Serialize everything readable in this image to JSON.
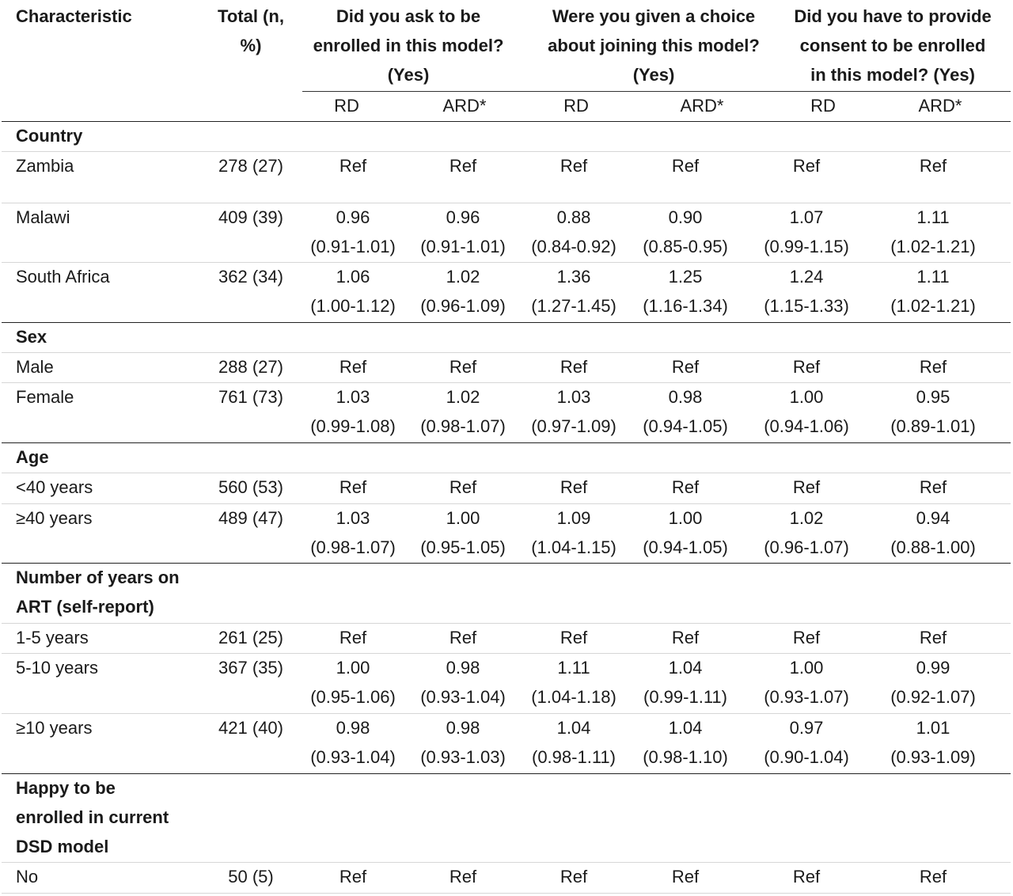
{
  "header": {
    "characteristic": "Characteristic",
    "total_line1": "Total (n,",
    "total_line2": "%)",
    "q1": [
      "Did you ask to be",
      "enrolled in this model?",
      "(Yes)"
    ],
    "q2": [
      "Were you given a choice",
      "about joining this model?",
      "(Yes)"
    ],
    "q3": [
      "Did you have to provide",
      "consent to be enrolled",
      "in this model? (Yes)"
    ],
    "sub": [
      "RD",
      "ARD*",
      "RD",
      "ARD*",
      "RD",
      "ARD*"
    ]
  },
  "sections": [
    {
      "title": [
        "Country"
      ]
    },
    {
      "title": [
        "Sex"
      ]
    },
    {
      "title": [
        "Age"
      ]
    },
    {
      "title": [
        "Number of years on",
        "ART (self-report)"
      ]
    },
    {
      "title": [
        "Happy to be",
        "enrolled in current",
        "DSD model"
      ]
    }
  ],
  "rows": [
    {
      "label": "Zambia",
      "total": "278 (27)",
      "vals": [
        "Ref",
        "Ref",
        "Ref",
        "Ref",
        "Ref",
        "Ref"
      ],
      "ci": [
        "",
        "",
        "",
        "",
        "",
        ""
      ]
    },
    {
      "label": "Malawi",
      "total": "409 (39)",
      "vals": [
        "0.96",
        "0.96",
        "0.88",
        "0.90",
        "1.07",
        "1.11"
      ],
      "ci": [
        "(0.91-1.01)",
        "(0.91-1.01)",
        "(0.84-0.92)",
        "(0.85-0.95)",
        "(0.99-1.15)",
        "(1.02-1.21)"
      ]
    },
    {
      "label": "South Africa",
      "total": "362 (34)",
      "vals": [
        "1.06",
        "1.02",
        "1.36",
        "1.25",
        "1.24",
        "1.11"
      ],
      "ci": [
        "(1.00-1.12)",
        "(0.96-1.09)",
        "(1.27-1.45)",
        "(1.16-1.34)",
        "(1.15-1.33)",
        "(1.02-1.21)"
      ]
    },
    {
      "label": "Male",
      "total": "288 (27)",
      "vals": [
        "Ref",
        "Ref",
        "Ref",
        "Ref",
        "Ref",
        "Ref"
      ],
      "ci": [
        "",
        "",
        "",
        "",
        "",
        ""
      ]
    },
    {
      "label": "Female",
      "total": "761 (73)",
      "vals": [
        "1.03",
        "1.02",
        "1.03",
        "0.98",
        "1.00",
        "0.95"
      ],
      "ci": [
        "(0.99-1.08)",
        "(0.98-1.07)",
        "(0.97-1.09)",
        "(0.94-1.05)",
        "(0.94-1.06)",
        "(0.89-1.01)"
      ]
    },
    {
      "label": "<40 years",
      "total": "560 (53)",
      "vals": [
        "Ref",
        "Ref",
        "Ref",
        "Ref",
        "Ref",
        "Ref"
      ],
      "ci": [
        "",
        "",
        "",
        "",
        "",
        ""
      ]
    },
    {
      "label": "≥40 years",
      "total": "489 (47)",
      "vals": [
        "1.03",
        "1.00",
        "1.09",
        "1.00",
        "1.02",
        "0.94"
      ],
      "ci": [
        "(0.98-1.07)",
        "(0.95-1.05)",
        "(1.04-1.15)",
        "(0.94-1.05)",
        "(0.96-1.07)",
        "(0.88-1.00)"
      ]
    },
    {
      "label": "1-5 years",
      "total": "261 (25)",
      "vals": [
        "Ref",
        "Ref",
        "Ref",
        "Ref",
        "Ref",
        "Ref"
      ],
      "ci": [
        "",
        "",
        "",
        "",
        "",
        ""
      ]
    },
    {
      "label": "5-10 years",
      "total": "367 (35)",
      "vals": [
        "1.00",
        "0.98",
        "1.11",
        "1.04",
        "1.00",
        "0.99"
      ],
      "ci": [
        "(0.95-1.06)",
        "(0.93-1.04)",
        "(1.04-1.18)",
        "(0.99-1.11)",
        "(0.93-1.07)",
        "(0.92-1.07)"
      ]
    },
    {
      "label": "≥10 years",
      "total": "421 (40)",
      "vals": [
        "0.98",
        "0.98",
        "1.04",
        "1.04",
        "0.97",
        "1.01"
      ],
      "ci": [
        "(0.93-1.04)",
        "(0.93-1.03)",
        "(0.98-1.11)",
        "(0.98-1.10)",
        "(0.90-1.04)",
        "(0.93-1.09)"
      ]
    },
    {
      "label": "No",
      "total": "50 (5)",
      "vals": [
        "Ref",
        "Ref",
        "Ref",
        "Ref",
        "Ref",
        "Ref"
      ],
      "ci": [
        "",
        "",
        "",
        "",
        "",
        ""
      ]
    }
  ]
}
